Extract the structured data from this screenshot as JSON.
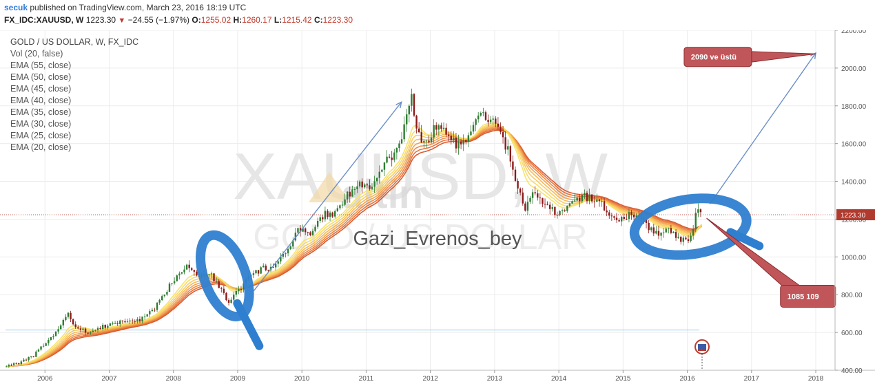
{
  "header": {
    "username": "secuk",
    "published_text": "published on TradingView.com, March 23, 2016 18:19 UTC",
    "symbol": "FX_IDC:XAUUSD, W",
    "price": "1223.30",
    "change": "−24.55 (−1.97%)",
    "ohlc": {
      "o_label": "O:",
      "o": "1255.02",
      "h_label": "H:",
      "h": "1260.17",
      "l_label": "L:",
      "l": "1215.42",
      "c_label": "C:",
      "c": "1223.30"
    }
  },
  "legend": {
    "title": "GOLD / US DOLLAR, W, FX_IDC",
    "items": [
      "Vol (20, false)",
      "EMA (55, close)",
      "EMA (50, close)",
      "EMA (45, close)",
      "EMA (40, close)",
      "EMA (35, close)",
      "EMA (30, close)",
      "EMA (25, close)",
      "EMA (20, close)"
    ]
  },
  "watermark": {
    "symbol": "XAUUSD, W",
    "name": "GOLD / US DOLLAR",
    "brand": "altin",
    "author": "Gazi_Evrenos_bey"
  },
  "annotations": {
    "target_label": "2090 ve üstü",
    "support_label": "1085   109"
  },
  "colors": {
    "up_candle": "#2e7d32",
    "down_candle": "#8b1a1a",
    "ema_fast": "#f6e05e",
    "ema_slow": "#d64a1c",
    "arrow": "#6b8fc8",
    "circle": "#2f7fd0",
    "callout": "#c0565a",
    "price_tag": "#b03a2e"
  },
  "chart_data": {
    "type": "line",
    "title": "GOLD / US DOLLAR, W, FX_IDC",
    "x_ticks": [
      "2006",
      "2007",
      "2008",
      "2009",
      "2010",
      "2011",
      "2012",
      "2013",
      "2014",
      "2015",
      "2016",
      "2017",
      "2018"
    ],
    "y_ticks": [
      "400.00",
      "600.00",
      "800.00",
      "1000.00",
      "1200.00",
      "1400.00",
      "1600.00",
      "1800.00",
      "2000.00",
      "2200.00"
    ],
    "ylim": [
      400,
      2200
    ],
    "xlim": [
      2005.3,
      2018.3
    ],
    "last_price": "1223.30",
    "horizontal_line": 613,
    "series": [
      {
        "x": [
          2005.4,
          2005.6,
          2005.8,
          2006.0,
          2006.2,
          2006.35,
          2006.5,
          2006.7,
          2006.9,
          2007.1,
          2007.3,
          2007.5,
          2007.7,
          2007.85,
          2008.0,
          2008.2,
          2008.4,
          2008.55,
          2008.7,
          2008.85,
          2009.0,
          2009.2,
          2009.4,
          2009.6,
          2009.8,
          2009.95,
          2010.1,
          2010.3,
          2010.5,
          2010.7,
          2010.9,
          2011.1,
          2011.3,
          2011.5,
          2011.62,
          2011.7,
          2011.8,
          2011.95,
          2012.1,
          2012.3,
          2012.45,
          2012.6,
          2012.75,
          2012.9,
          2013.05,
          2013.2,
          2013.35,
          2013.45,
          2013.6,
          2013.8,
          2014.0,
          2014.2,
          2014.4,
          2014.6,
          2014.8,
          2014.95,
          2015.1,
          2015.3,
          2015.5,
          2015.7,
          2015.9,
          2016.05,
          2016.15,
          2016.23
        ],
        "y": [
          425,
          440,
          470,
          540,
          610,
          700,
          620,
          600,
          630,
          650,
          660,
          670,
          720,
          800,
          880,
          960,
          900,
          920,
          850,
          760,
          820,
          900,
          940,
          950,
          1050,
          1150,
          1110,
          1220,
          1230,
          1330,
          1380,
          1370,
          1500,
          1560,
          1750,
          1860,
          1650,
          1600,
          1700,
          1640,
          1580,
          1620,
          1760,
          1730,
          1680,
          1570,
          1390,
          1250,
          1330,
          1270,
          1220,
          1300,
          1320,
          1300,
          1230,
          1200,
          1220,
          1190,
          1120,
          1160,
          1080,
          1100,
          1240,
          1223
        ]
      }
    ]
  }
}
